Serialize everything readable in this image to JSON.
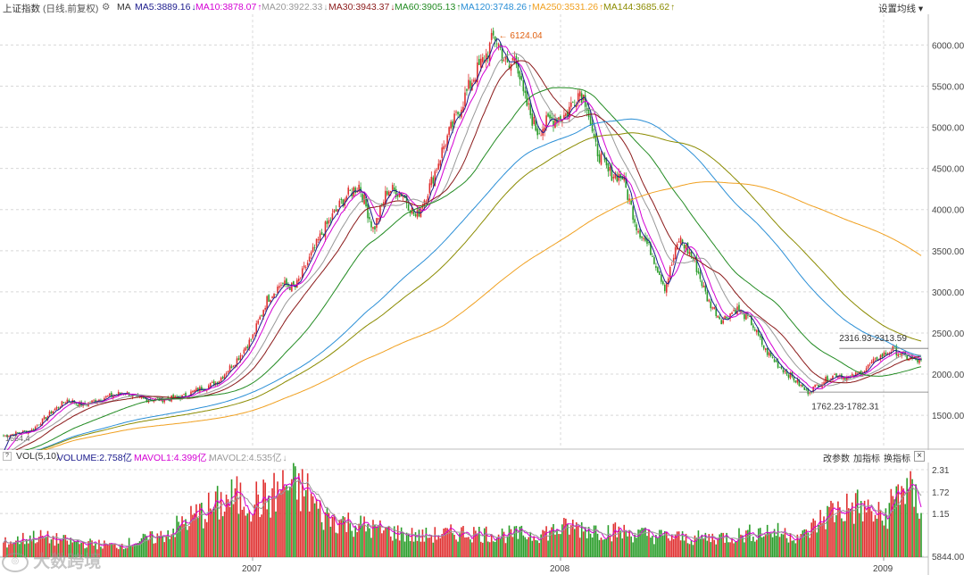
{
  "header": {
    "index_name": "上证指数",
    "mode": "(日线,前复权)",
    "ma_label": "MA",
    "settings_label": "设置均线",
    "ma_items": [
      {
        "label": "MA5:3889.16",
        "arrow": "↓",
        "color": "#1a1a8c"
      },
      {
        "label": "MA10:3878.07",
        "arrow": "↑",
        "color": "#d400d4"
      },
      {
        "label": "MA20:3922.33",
        "arrow": "↓",
        "color": "#999999"
      },
      {
        "label": "MA30:3943.37",
        "arrow": "↓",
        "color": "#8b1a1a"
      },
      {
        "label": "MA60:3905.13",
        "arrow": "↑",
        "color": "#228b22"
      },
      {
        "label": "MA120:3748.26",
        "arrow": "↑",
        "color": "#2b8fd6"
      },
      {
        "label": "MA250:3531.26",
        "arrow": "↑",
        "color": "#f0a020"
      },
      {
        "label": "MA144:3685.62",
        "arrow": "↑",
        "color": "#8b8b00"
      }
    ]
  },
  "volume_header": {
    "label": "VOL(5,10)",
    "items": [
      {
        "label": "VOLUME:2.758亿",
        "color": "#1a1a8c"
      },
      {
        "label": "MAVOL1:4.399亿",
        "arrow": "↓",
        "color": "#d400d4"
      },
      {
        "label": "MAVOL2:4.535亿",
        "arrow": "↓",
        "color": "#999999"
      }
    ],
    "buttons": [
      "改参数",
      "加指标",
      "换指标"
    ],
    "close": "×"
  },
  "watermark": "大数跨境",
  "colors": {
    "up": "#e03030",
    "down": "#2a9d2a",
    "grid": "#d8d8d8"
  },
  "chart_data": [
    {
      "type": "line",
      "title": "上证指数 日线 前复权",
      "y_axis_ticks": [
        "6000.00",
        "5500.00",
        "5000.00",
        "4500.00",
        "4000.00",
        "3500.00",
        "3000.00",
        "2500.00",
        "2000.00",
        "1500.00"
      ],
      "ylim": [
        1100,
        6330
      ],
      "x_labels": [
        "2007",
        "2008",
        "2009"
      ],
      "annotations": {
        "peak": "6124.04",
        "low_range": "1762.23-1782.31",
        "high_range": "2316.93-2313.59",
        "start_low": "1664.4"
      },
      "price_path": [
        [
          0,
          1250
        ],
        [
          4,
          1320
        ],
        [
          7,
          1560
        ],
        [
          9,
          1690
        ],
        [
          11,
          1620
        ],
        [
          14,
          1710
        ],
        [
          17,
          1780
        ],
        [
          19,
          1700
        ],
        [
          22,
          1690
        ],
        [
          25,
          1720
        ],
        [
          27,
          1800
        ],
        [
          30,
          1900
        ],
        [
          33,
          2200
        ],
        [
          35,
          2450
        ],
        [
          37,
          2900
        ],
        [
          39,
          3100
        ],
        [
          41,
          3050
        ],
        [
          43,
          3400
        ],
        [
          45,
          3750
        ],
        [
          48,
          4150
        ],
        [
          50,
          4300
        ],
        [
          52,
          3750
        ],
        [
          54,
          4250
        ],
        [
          56,
          4200
        ],
        [
          58,
          3900
        ],
        [
          60,
          4300
        ],
        [
          62,
          4800
        ],
        [
          64,
          5200
        ],
        [
          66,
          5600
        ],
        [
          68,
          5900
        ],
        [
          69,
          6124
        ],
        [
          71,
          5700
        ],
        [
          72,
          5900
        ],
        [
          73,
          5400
        ],
        [
          75,
          4950
        ],
        [
          77,
          5100
        ],
        [
          79,
          5150
        ],
        [
          81,
          5450
        ],
        [
          82,
          5300
        ],
        [
          83,
          4800
        ],
        [
          85,
          4450
        ],
        [
          87,
          4400
        ],
        [
          89,
          3800
        ],
        [
          91,
          3500
        ],
        [
          93,
          3050
        ],
        [
          95,
          3650
        ],
        [
          97,
          3400
        ],
        [
          99,
          2900
        ],
        [
          101,
          2650
        ],
        [
          103,
          2800
        ],
        [
          105,
          2650
        ],
        [
          107,
          2300
        ],
        [
          109,
          2100
        ],
        [
          111,
          1950
        ],
        [
          113,
          1780
        ],
        [
          115,
          1900
        ],
        [
          117,
          2000
        ],
        [
          119,
          1950
        ],
        [
          121,
          2050
        ],
        [
          123,
          2200
        ],
        [
          125,
          2300
        ],
        [
          127,
          2200
        ],
        [
          129,
          2150
        ]
      ]
    },
    {
      "type": "bar",
      "title": "VOL(5,10)",
      "y_axis_ticks": [
        "2.31",
        "1.72",
        "1.15",
        "5844.00"
      ],
      "ylim": [
        0,
        2.45
      ]
    }
  ]
}
